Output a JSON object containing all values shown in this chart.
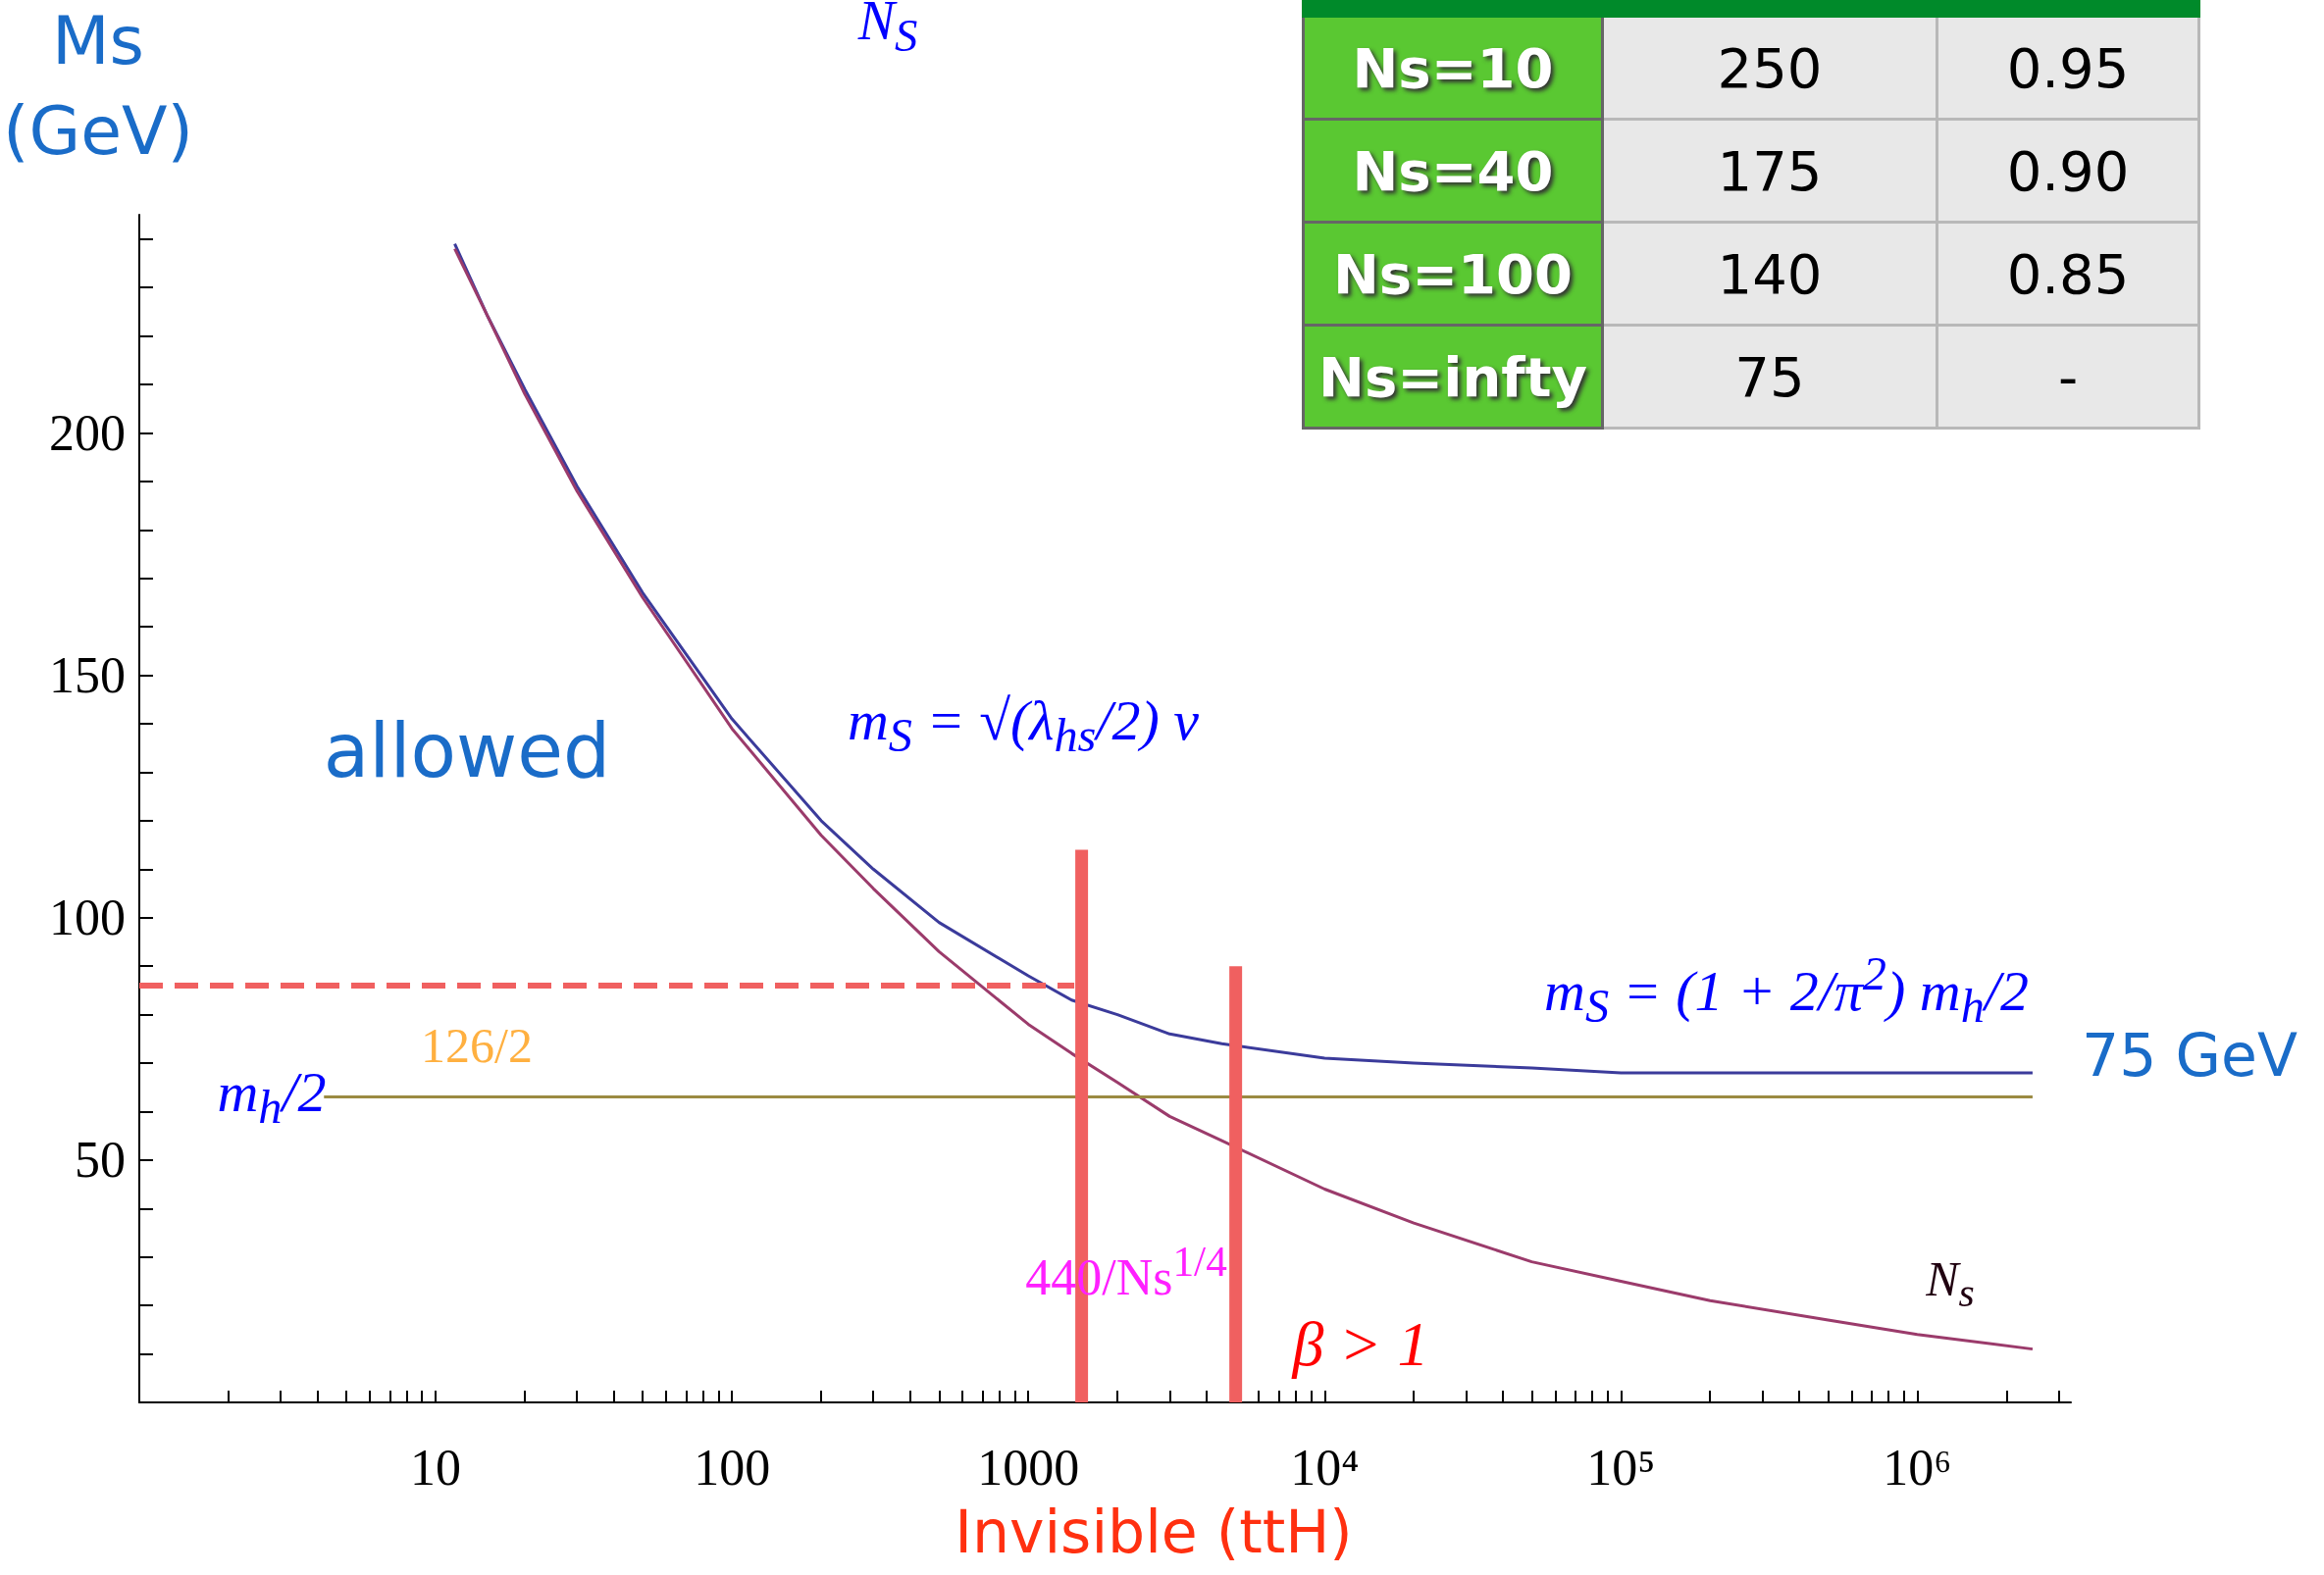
{
  "chart_data": [
    {
      "type": "line",
      "xlabel": "Invisible (ttH)",
      "ylabel": "Ms (GeV)",
      "log": "x",
      "xlim": [
        1,
        3300000
      ],
      "ylim": [
        0,
        245
      ],
      "xticks": [
        {
          "value": 1,
          "label": null
        },
        {
          "value": 2,
          "label": null
        },
        {
          "value": 3,
          "label": null
        },
        {
          "value": 4,
          "label": null
        },
        {
          "value": 5,
          "label": null
        },
        {
          "value": 6,
          "label": null
        },
        {
          "value": 7,
          "label": null
        },
        {
          "value": 8,
          "label": null
        },
        {
          "value": 9,
          "label": null
        },
        10,
        {
          "value": 20,
          "label": null
        },
        {
          "value": 30,
          "label": null
        },
        {
          "value": 40,
          "label": null
        },
        {
          "value": 50,
          "label": null
        },
        {
          "value": 60,
          "label": null
        },
        {
          "value": 70,
          "label": null
        },
        {
          "value": 80,
          "label": null
        },
        {
          "value": 90,
          "label": null
        },
        100,
        {
          "value": 200,
          "label": null
        },
        {
          "value": 300,
          "label": null
        },
        {
          "value": 400,
          "label": null
        },
        {
          "value": 500,
          "label": null
        },
        {
          "value": 600,
          "label": null
        },
        {
          "value": 700,
          "label": null
        },
        {
          "value": 800,
          "label": null
        },
        {
          "value": 900,
          "label": null
        },
        1000,
        {
          "value": 2000,
          "label": null
        },
        {
          "value": 3000,
          "label": null
        },
        {
          "value": 4000,
          "label": null
        },
        {
          "value": 5000,
          "label": null
        },
        {
          "value": 6000,
          "label": null
        },
        {
          "value": 7000,
          "label": null
        },
        {
          "value": 8000,
          "label": null
        },
        {
          "value": 9000,
          "label": null
        },
        {
          "value": 10000,
          "label": "10⁴"
        },
        {
          "value": 20000,
          "label": null
        },
        {
          "value": 30000,
          "label": null
        },
        {
          "value": 40000,
          "label": null
        },
        {
          "value": 50000,
          "label": null
        },
        {
          "value": 60000,
          "label": null
        },
        {
          "value": 70000,
          "label": null
        },
        {
          "value": 80000,
          "label": null
        },
        {
          "value": 90000,
          "label": null
        },
        {
          "value": 100000,
          "label": "10⁵"
        },
        {
          "value": 200000,
          "label": null
        },
        {
          "value": 300000,
          "label": null
        },
        {
          "value": 400000,
          "label": null
        },
        {
          "value": 500000,
          "label": null
        },
        {
          "value": 600000,
          "label": null
        },
        {
          "value": 700000,
          "label": null
        },
        {
          "value": 800000,
          "label": null
        },
        {
          "value": 900000,
          "label": null
        },
        {
          "value": 1000000,
          "label": "10⁶"
        },
        {
          "value": 2000000,
          "label": null
        },
        {
          "value": 3000000,
          "label": null
        }
      ],
      "yticks": [
        {
          "value": 10,
          "label": null
        },
        {
          "value": 20,
          "label": null
        },
        {
          "value": 30,
          "label": null
        },
        {
          "value": 40,
          "label": null
        },
        50,
        {
          "value": 60,
          "label": null
        },
        {
          "value": 70,
          "label": null
        },
        {
          "value": 80,
          "label": null
        },
        {
          "value": 90,
          "label": null
        },
        100,
        {
          "value": 110,
          "label": null
        },
        {
          "value": 120,
          "label": null
        },
        {
          "value": 130,
          "label": null
        },
        {
          "value": 140,
          "label": null
        },
        150,
        {
          "value": 160,
          "label": null
        },
        {
          "value": 170,
          "label": null
        },
        {
          "value": 180,
          "label": null
        },
        {
          "value": 190,
          "label": null
        },
        200,
        {
          "value": 210,
          "label": null
        },
        {
          "value": 220,
          "label": null
        },
        {
          "value": 230,
          "label": null
        },
        {
          "value": 240,
          "label": null
        }
      ],
      "series": [
        {
          "color": "#3b3b9b",
          "x": [
            11.6,
            15,
            20,
            30,
            50,
            100,
            200,
            300,
            500,
            1000,
            1400,
            2000,
            3000,
            4500,
            10000,
            20000,
            50000,
            100000,
            1000000,
            2450000
          ],
          "values": [
            239,
            224,
            209,
            189,
            167,
            141,
            120,
            110,
            99,
            88,
            83,
            80,
            76,
            74,
            71,
            70,
            69,
            68,
            68,
            68
          ]
        },
        {
          "color": "#9b3b6b",
          "x": [
            11.6,
            15,
            20,
            30,
            50,
            100,
            200,
            300,
            500,
            1000,
            1400,
            2000,
            3000,
            4500,
            10000,
            20000,
            50000,
            100000,
            200000,
            500000,
            1000000,
            2450000
          ],
          "values": [
            238,
            224,
            208,
            188,
            166,
            139,
            117,
            106,
            93,
            78,
            72,
            66,
            59,
            54,
            44,
            37,
            29,
            25,
            21,
            17,
            14,
            11
          ]
        },
        {
          "color": "#9b8a42",
          "x": [
            4.2,
            2450000
          ],
          "values": [
            63,
            63
          ]
        },
        {
          "color": "#f06060",
          "line_style": "dashed",
          "x": [
            1,
            1430
          ],
          "values": [
            86,
            86
          ]
        },
        {
          "color": "#f06060",
          "x": [
            1514,
            1514
          ],
          "values": [
            0,
            114
          ]
        },
        {
          "color": "#f06060",
          "x": [
            5012,
            5012
          ],
          "values": [
            0,
            90
          ]
        }
      ],
      "annotations": [
        "N$_{S}$",
        "75 GeV",
        "allowed",
        "m$_{S}$ = √(λ$_{hs}$/2) v",
        "m$_{S}$ = (1 + 2/π$^{2}$) m$_{h}$/2",
        "126/2",
        "m$_{h}$/2",
        "440/Ns$^{1/4}$",
        "β > 1",
        "N$_{s}$"
      ]
    },
    {
      "type": "other",
      "y_categories": [
        "Ns=10",
        "Ns=40",
        "Ns=100",
        "Ns=infty"
      ],
      "cell_labels": [
        [
          "250",
          "0.95"
        ],
        [
          "175",
          "0.90"
        ],
        [
          "140",
          "0.85"
        ],
        [
          "75",
          "-"
        ]
      ]
    }
  ]
}
